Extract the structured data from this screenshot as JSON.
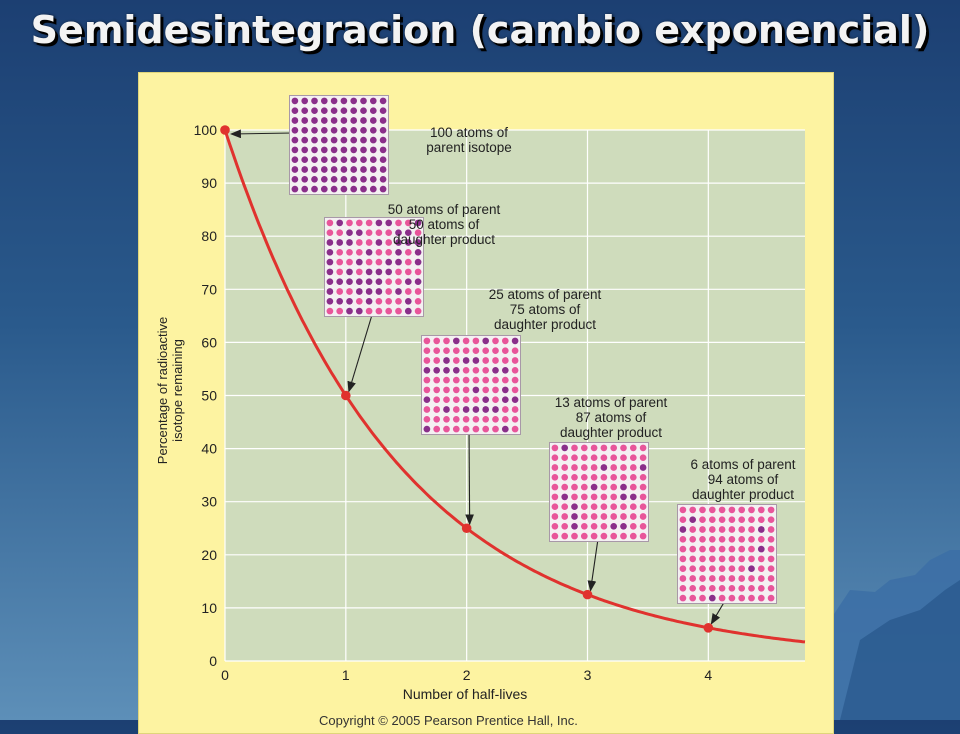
{
  "slide": {
    "title": "Semidesintegracion (cambio exponencial)"
  },
  "chart_data": {
    "type": "line",
    "xlabel": "Number of half-lives",
    "ylabel_lines": [
      "Percentage of radioactive",
      "isotope remaining"
    ],
    "xlim": [
      0,
      4.8
    ],
    "ylim": [
      0,
      100
    ],
    "x_ticks": [
      0,
      1,
      2,
      3,
      4
    ],
    "y_ticks": [
      0,
      10,
      20,
      30,
      40,
      50,
      60,
      70,
      80,
      90,
      100
    ],
    "grid": true,
    "curve": "exponential decay",
    "points": [
      {
        "x": 0,
        "y": 100
      },
      {
        "x": 1,
        "y": 50
      },
      {
        "x": 2,
        "y": 25
      },
      {
        "x": 3,
        "y": 12.5
      },
      {
        "x": 4,
        "y": 6.25
      }
    ],
    "annotations": [
      {
        "lines": [
          "100 atoms of",
          "parent isotope"
        ],
        "parent": 100,
        "daughter": 0
      },
      {
        "lines": [
          "50 atoms of parent",
          "50 atoms of",
          "daughter product"
        ],
        "parent": 50,
        "daughter": 50
      },
      {
        "lines": [
          "25 atoms of parent",
          "75 atoms of",
          "daughter product"
        ],
        "parent": 25,
        "daughter": 75
      },
      {
        "lines": [
          "13 atoms of parent",
          "87 atoms of",
          "daughter product"
        ],
        "parent": 13,
        "daughter": 87
      },
      {
        "lines": [
          "6 atoms of parent",
          "94 atoms of",
          "daughter product"
        ],
        "parent": 6,
        "daughter": 94
      }
    ],
    "colors": {
      "curve": "#e0322e",
      "plot_bg": "#cfdcbc",
      "panel_bg": "#fdf3a1",
      "parent_atom": "#8a2e8a",
      "daughter_atom": "#e8559a"
    }
  },
  "copyright": "Copyright © 2005 Pearson Prentice Hall, Inc."
}
